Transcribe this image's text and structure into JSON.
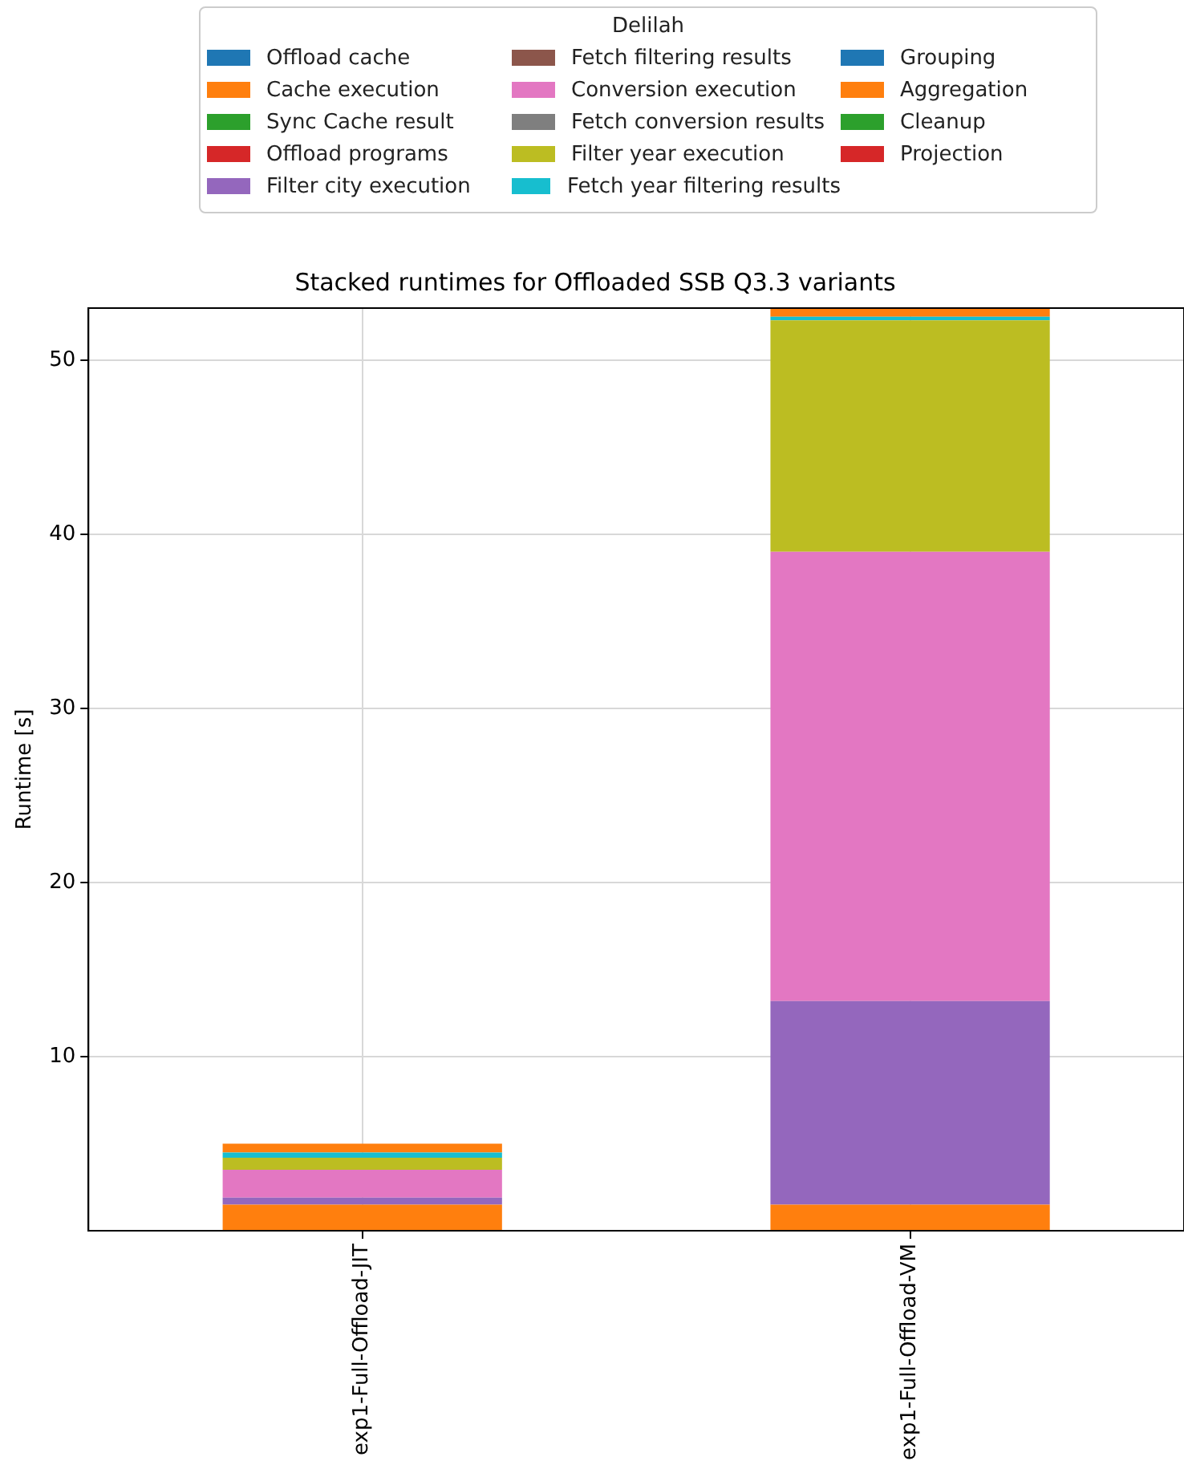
{
  "chart_data": {
    "type": "bar",
    "title": "Stacked runtimes for Offloaded SSB Q3.3 variants",
    "ylabel": "Runtime [s]",
    "legend_title": "Delilah",
    "categories": [
      "exp1-Full-Offload-JIT",
      "exp1-Full-Offload-VM"
    ],
    "stacked": true,
    "ylim": [
      0,
      53
    ],
    "yticks": [
      10,
      20,
      30,
      40,
      50
    ],
    "grid": true,
    "legend": "top",
    "series": [
      {
        "name": "Offload cache",
        "color": "#1f77b4",
        "values": [
          0,
          0
        ]
      },
      {
        "name": "Cache execution",
        "color": "#ff7f0e",
        "values": [
          1.5,
          1.5
        ]
      },
      {
        "name": "Sync Cache result",
        "color": "#2ca02c",
        "values": [
          0,
          0
        ]
      },
      {
        "name": "Offload programs",
        "color": "#d62728",
        "values": [
          0,
          0
        ]
      },
      {
        "name": "Filter city execution",
        "color": "#9467bd",
        "values": [
          0.4,
          11.7
        ]
      },
      {
        "name": "Fetch filtering results",
        "color": "#8c564b",
        "values": [
          0,
          0
        ]
      },
      {
        "name": "Conversion execution",
        "color": "#e377c2",
        "values": [
          1.6,
          25.8
        ]
      },
      {
        "name": "Fetch conversion results",
        "color": "#7f7f7f",
        "values": [
          0,
          0
        ]
      },
      {
        "name": "Filter year execution",
        "color": "#bcbd22",
        "values": [
          0.7,
          13.3
        ]
      },
      {
        "name": "Fetch year filtering results",
        "color": "#17becf",
        "values": [
          0.3,
          0.2
        ]
      },
      {
        "name": "Grouping",
        "color": "#1f77b4",
        "values": [
          0,
          0
        ]
      },
      {
        "name": "Aggregation",
        "color": "#ff7f0e",
        "values": [
          0.5,
          0.5
        ]
      },
      {
        "name": "Cleanup",
        "color": "#2ca02c",
        "values": [
          0,
          0
        ]
      },
      {
        "name": "Projection",
        "color": "#d62728",
        "values": [
          0,
          0
        ]
      }
    ]
  }
}
